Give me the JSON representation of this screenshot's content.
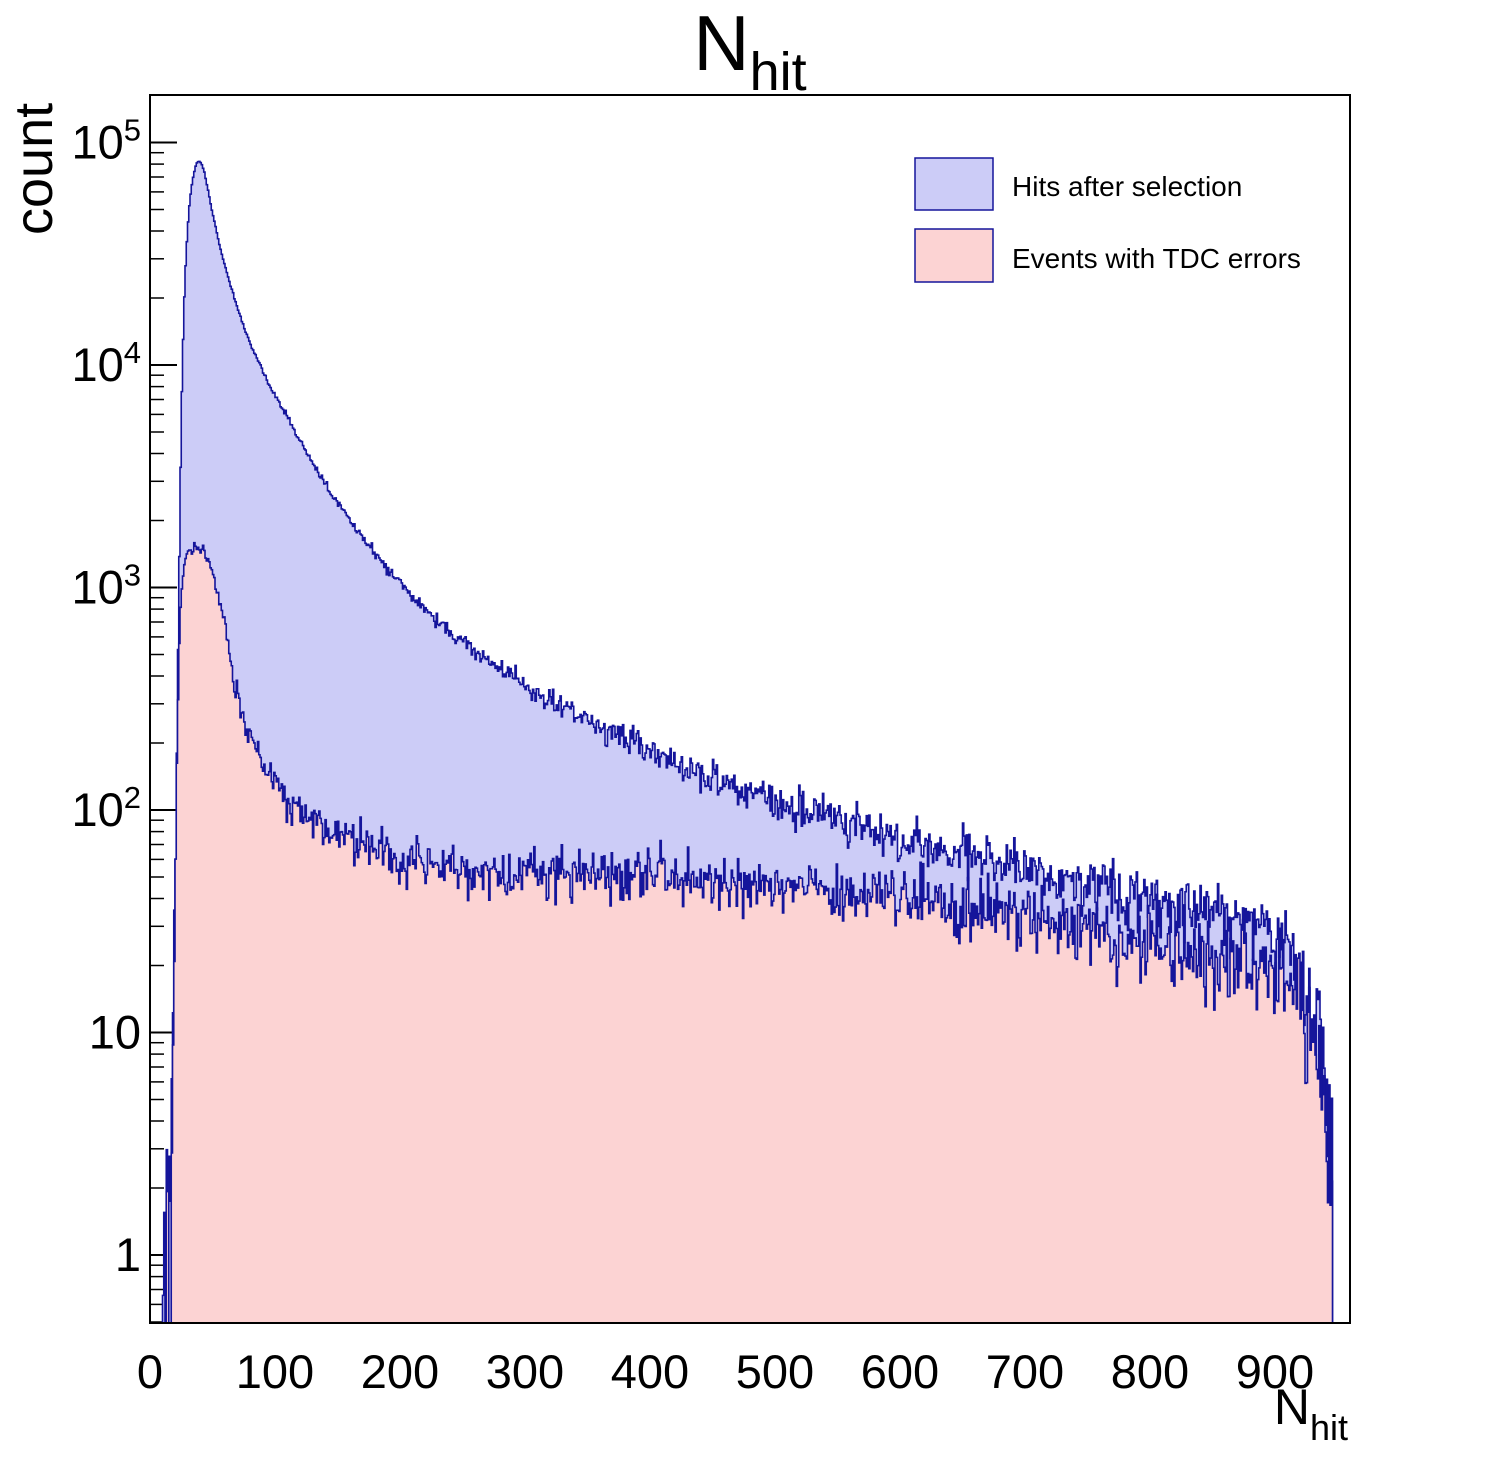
{
  "title": {
    "main": "N",
    "sub": "hit"
  },
  "axes": {
    "x": {
      "label_main": "N",
      "label_sub": "hit",
      "range": [
        0,
        960
      ],
      "ticks": [
        0,
        100,
        200,
        300,
        400,
        500,
        600,
        700,
        800,
        900
      ],
      "minor_tick_step": 20
    },
    "y": {
      "label": "count",
      "scale": "log",
      "range": [
        0.5,
        163000
      ],
      "tick_exponents": [
        0,
        1,
        2,
        3,
        4,
        5
      ]
    }
  },
  "legend": [
    {
      "label": "Hits after selection",
      "fill": "#ccccf7",
      "line": "#15159b"
    },
    {
      "label": "Events with TDC errors",
      "fill": "#fcd3d3",
      "line": "#15159b"
    }
  ],
  "chart_data": {
    "type": "bar",
    "subtype": "step-histogram-overlay",
    "title": "N_hit",
    "xlabel": "N_hit",
    "ylabel": "count",
    "xlim": [
      0,
      960
    ],
    "ylim": [
      0.5,
      163000
    ],
    "y_scale": "log",
    "bin_width": 1,
    "grid": false,
    "legend_position": "top-right",
    "series": [
      {
        "name": "Hits after selection",
        "fill": "#ccccf7",
        "line": "#15159b",
        "control_points": [
          [
            10,
            0.6
          ],
          [
            11,
            2
          ],
          [
            12,
            0.8
          ],
          [
            13,
            2.5
          ],
          [
            14,
            1
          ],
          [
            15,
            3
          ],
          [
            16,
            2
          ],
          [
            17,
            6
          ],
          [
            18,
            12
          ],
          [
            19,
            25
          ],
          [
            20,
            60
          ],
          [
            21,
            180
          ],
          [
            22,
            500
          ],
          [
            23,
            1400
          ],
          [
            24,
            3500
          ],
          [
            25,
            7500
          ],
          [
            26,
            13000
          ],
          [
            27,
            20000
          ],
          [
            28,
            28000
          ],
          [
            29,
            36000
          ],
          [
            30,
            44000
          ],
          [
            31,
            52000
          ],
          [
            32,
            59000
          ],
          [
            33,
            65000
          ],
          [
            34,
            70000
          ],
          [
            35,
            74500
          ],
          [
            36,
            78000
          ],
          [
            37,
            80500
          ],
          [
            38,
            81800
          ],
          [
            39,
            82000
          ],
          [
            40,
            81500
          ],
          [
            41,
            79500
          ],
          [
            42,
            76500
          ],
          [
            43,
            73000
          ],
          [
            44,
            69000
          ],
          [
            45,
            65000
          ],
          [
            46,
            61000
          ],
          [
            47,
            57000
          ],
          [
            48,
            53500
          ],
          [
            49,
            50000
          ],
          [
            50,
            47000
          ],
          [
            52,
            41500
          ],
          [
            54,
            37000
          ],
          [
            56,
            33200
          ],
          [
            58,
            30000
          ],
          [
            60,
            27200
          ],
          [
            63,
            23700
          ],
          [
            66,
            20800
          ],
          [
            69,
            18400
          ],
          [
            72,
            16400
          ],
          [
            75,
            14700
          ],
          [
            78,
            13300
          ],
          [
            81,
            12000
          ],
          [
            84,
            11000
          ],
          [
            87,
            10100
          ],
          [
            90,
            9300
          ],
          [
            95,
            8100
          ],
          [
            100,
            7200
          ],
          [
            110,
            5790
          ],
          [
            120,
            4510
          ],
          [
            130,
            3590
          ],
          [
            140,
            2900
          ],
          [
            150,
            2380
          ],
          [
            160,
            1985
          ],
          [
            170,
            1670
          ],
          [
            180,
            1410
          ],
          [
            190,
            1210
          ],
          [
            200,
            1046
          ],
          [
            210,
            886
          ],
          [
            220,
            788
          ],
          [
            230,
            705
          ],
          [
            240,
            634
          ],
          [
            250,
            573
          ],
          [
            260,
            520
          ],
          [
            270,
            474
          ],
          [
            280,
            434
          ],
          [
            290,
            398
          ],
          [
            300,
            367
          ],
          [
            310,
            339
          ],
          [
            320,
            314
          ],
          [
            330,
            292
          ],
          [
            340,
            272
          ],
          [
            350,
            254
          ],
          [
            360,
            237
          ],
          [
            370,
            222
          ],
          [
            380,
            209
          ],
          [
            390,
            196
          ],
          [
            400,
            185
          ],
          [
            410,
            174
          ],
          [
            420,
            165
          ],
          [
            430,
            156
          ],
          [
            440,
            148
          ],
          [
            450,
            140
          ],
          [
            460,
            133
          ],
          [
            470,
            127
          ],
          [
            480,
            121
          ],
          [
            490,
            115
          ],
          [
            500,
            110
          ],
          [
            520,
            101
          ],
          [
            540,
            93
          ],
          [
            560,
            86
          ],
          [
            580,
            80
          ],
          [
            600,
            74
          ],
          [
            630,
            67
          ],
          [
            660,
            61
          ],
          [
            690,
            56
          ],
          [
            720,
            51
          ],
          [
            750,
            47
          ],
          [
            780,
            43
          ],
          [
            810,
            40
          ],
          [
            840,
            36
          ],
          [
            870,
            33
          ],
          [
            900,
            27
          ],
          [
            908,
            24
          ],
          [
            915,
            21
          ],
          [
            922,
            16
          ],
          [
            928,
            12
          ],
          [
            934,
            9
          ],
          [
            939,
            6
          ],
          [
            943,
            4
          ],
          [
            945,
            2
          ]
        ]
      },
      {
        "name": "Events with TDC errors",
        "fill": "#fcd3d3",
        "line": "#15159b",
        "control_points": [
          [
            13,
            0.7
          ],
          [
            14,
            1.3
          ],
          [
            15,
            0.9
          ],
          [
            16,
            2.5
          ],
          [
            17,
            5
          ],
          [
            18,
            10
          ],
          [
            19,
            22
          ],
          [
            20,
            60
          ],
          [
            21,
            150
          ],
          [
            22,
            330
          ],
          [
            23,
            560
          ],
          [
            24,
            800
          ],
          [
            25,
            1000
          ],
          [
            26,
            1150
          ],
          [
            27,
            1270
          ],
          [
            28,
            1350
          ],
          [
            30,
            1430
          ],
          [
            32,
            1470
          ],
          [
            34,
            1490
          ],
          [
            36,
            1500
          ],
          [
            38,
            1500
          ],
          [
            40,
            1500
          ],
          [
            42,
            1470
          ],
          [
            44,
            1420
          ],
          [
            46,
            1340
          ],
          [
            48,
            1240
          ],
          [
            50,
            1130
          ],
          [
            52,
            1020
          ],
          [
            54,
            920
          ],
          [
            56,
            830
          ],
          [
            58,
            750
          ],
          [
            60,
            680
          ],
          [
            62,
            560
          ],
          [
            64,
            470
          ],
          [
            66,
            400
          ],
          [
            68,
            350
          ],
          [
            70,
            315
          ],
          [
            72,
            287
          ],
          [
            75,
            253
          ],
          [
            78,
            227
          ],
          [
            81,
            206
          ],
          [
            84,
            189
          ],
          [
            87,
            174
          ],
          [
            90,
            162
          ],
          [
            95,
            144
          ],
          [
            100,
            130
          ],
          [
            105,
            118
          ],
          [
            110,
            108
          ],
          [
            115,
            104
          ],
          [
            120,
            100
          ],
          [
            125,
            95
          ],
          [
            130,
            90
          ],
          [
            135,
            86
          ],
          [
            140,
            82
          ],
          [
            145,
            79
          ],
          [
            150,
            76
          ],
          [
            160,
            71
          ],
          [
            170,
            67
          ],
          [
            180,
            64
          ],
          [
            190,
            61
          ],
          [
            200,
            59
          ],
          [
            220,
            56
          ],
          [
            240,
            54
          ],
          [
            260,
            53
          ],
          [
            280,
            52
          ],
          [
            300,
            52
          ],
          [
            320,
            52
          ],
          [
            340,
            52
          ],
          [
            360,
            52
          ],
          [
            380,
            51
          ],
          [
            400,
            51
          ],
          [
            420,
            50
          ],
          [
            440,
            49
          ],
          [
            460,
            48
          ],
          [
            480,
            47
          ],
          [
            500,
            46
          ],
          [
            520,
            45
          ],
          [
            540,
            44
          ],
          [
            560,
            42
          ],
          [
            580,
            41
          ],
          [
            600,
            39
          ],
          [
            620,
            38
          ],
          [
            640,
            36
          ],
          [
            660,
            35
          ],
          [
            680,
            33
          ],
          [
            700,
            32
          ],
          [
            720,
            30
          ],
          [
            740,
            29
          ],
          [
            760,
            28
          ],
          [
            780,
            26
          ],
          [
            800,
            25
          ],
          [
            820,
            24
          ],
          [
            840,
            23
          ],
          [
            860,
            21
          ],
          [
            880,
            20
          ],
          [
            900,
            19
          ],
          [
            908,
            17
          ],
          [
            915,
            15
          ],
          [
            922,
            12
          ],
          [
            928,
            9
          ],
          [
            934,
            7
          ],
          [
            939,
            5
          ],
          [
            943,
            3
          ],
          [
            945,
            2
          ]
        ]
      }
    ]
  }
}
